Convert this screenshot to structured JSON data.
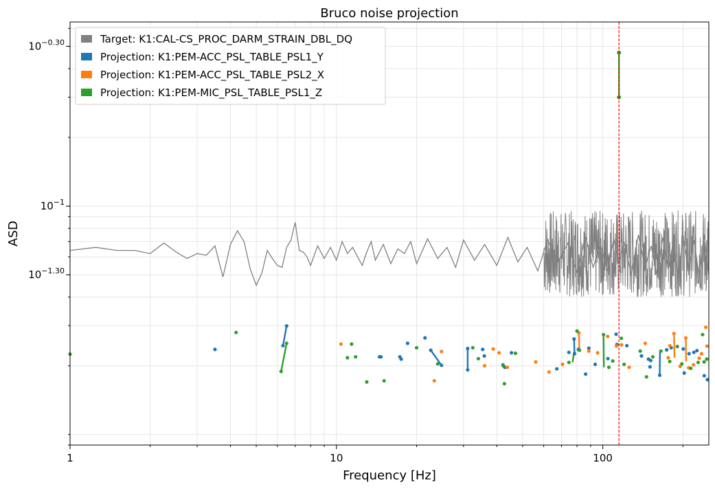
{
  "chart_data": {
    "type": "line",
    "title": "Bruco noise projection",
    "xlabel": "Frequency [Hz]",
    "ylabel": "ASD",
    "xscale": "log",
    "yscale": "log",
    "xlim": [
      1,
      250
    ],
    "ylim": [
      0.009,
      0.64
    ],
    "grid": true,
    "legend_position": "top-left",
    "x_ticks": [
      {
        "value": 1,
        "label": "1"
      },
      {
        "value": 10,
        "label": "10"
      },
      {
        "value": 100,
        "label": "100"
      }
    ],
    "y_ticks": [
      {
        "value": 0.501,
        "label": "10",
        "exp": "−0.30"
      },
      {
        "value": 0.1,
        "label": "10",
        "exp": "−1"
      },
      {
        "value": 0.0501,
        "label": "10",
        "exp": "−1.30"
      }
    ],
    "vline": {
      "x": 115,
      "color": "#ff0000",
      "style": "dashed"
    },
    "target": {
      "name": "Target: K1:CAL-CS_PROC_DARM_STRAIN_DBL_DQ",
      "color": "#808080",
      "x": [
        1,
        1.25,
        1.5,
        1.75,
        2,
        2.25,
        2.5,
        2.75,
        3,
        3.25,
        3.5,
        3.75,
        4,
        4.25,
        4.5,
        4.75,
        5,
        5.25,
        5.5,
        5.75,
        6,
        6.25,
        6.5,
        6.75,
        7,
        7.25,
        7.5,
        7.75,
        8,
        8.5,
        9,
        9.5,
        10,
        10.5,
        11,
        11.5,
        12,
        12.5,
        13,
        13.5,
        14,
        15,
        16,
        17,
        18,
        19,
        20,
        22,
        24,
        26,
        28,
        30,
        33,
        36,
        40,
        44,
        48,
        52,
        57,
        62,
        68,
        74,
        80,
        86,
        92,
        98,
        104,
        110,
        115,
        120,
        128,
        136,
        144,
        152,
        160,
        168,
        176,
        184,
        192,
        200,
        210,
        220,
        230,
        240,
        250
      ],
      "y": [
        0.064,
        0.066,
        0.064,
        0.064,
        0.062,
        0.069,
        0.063,
        0.059,
        0.062,
        0.061,
        0.067,
        0.049,
        0.068,
        0.078,
        0.07,
        0.053,
        0.045,
        0.051,
        0.064,
        0.059,
        0.055,
        0.054,
        0.066,
        0.071,
        0.085,
        0.064,
        0.063,
        0.06,
        0.055,
        0.067,
        0.059,
        0.066,
        0.058,
        0.07,
        0.062,
        0.066,
        0.06,
        0.055,
        0.063,
        0.07,
        0.058,
        0.068,
        0.056,
        0.065,
        0.062,
        0.07,
        0.056,
        0.072,
        0.059,
        0.066,
        0.054,
        0.071,
        0.058,
        0.068,
        0.055,
        0.073,
        0.057,
        0.066,
        0.052,
        0.071,
        0.057,
        0.069,
        0.051,
        0.074,
        0.054,
        0.068,
        0.052,
        0.072,
        0.056,
        0.07,
        0.05,
        0.075,
        0.054,
        0.067,
        0.049,
        0.073,
        0.053,
        0.07,
        0.048,
        0.074,
        0.052,
        0.071,
        0.049,
        0.075,
        0.05
      ]
    },
    "series": [
      {
        "name": "Projection: K1:PEM-ACC_PSL_TABLE_PSL1_Y",
        "color": "#1f77b4",
        "points": [
          [
            3.5,
            0.0236
          ],
          [
            6.3,
            0.0245
          ],
          [
            6.5,
            0.0299
          ],
          [
            14.5,
            0.0219
          ],
          [
            14.7,
            0.0219
          ],
          [
            17.3,
            0.0219
          ],
          [
            17.5,
            0.0214
          ],
          [
            18.5,
            0.0251
          ],
          [
            21.5,
            0.0265
          ],
          [
            22.6,
            0.0234
          ],
          [
            24.8,
            0.0201
          ],
          [
            31.1,
            0.0238
          ],
          [
            31.1,
            0.0192
          ],
          [
            35.4,
            0.0236
          ],
          [
            35.9,
            0.0221
          ],
          [
            42.2,
            0.0202
          ],
          [
            42.9,
            0.0197
          ],
          [
            45.4,
            0.0228
          ],
          [
            67.2,
            0.0194
          ],
          [
            74.6,
            0.0229
          ],
          [
            78.0,
            0.0262
          ],
          [
            78.3,
            0.0226
          ],
          [
            81.0,
            0.0236
          ],
          [
            86.2,
            0.0184
          ],
          [
            88.6,
            0.0239
          ],
          [
            93.6,
            0.0203
          ],
          [
            104.5,
            0.0215
          ],
          [
            112.2,
            0.0275
          ],
          [
            113.0,
            0.0248
          ],
          [
            123.1,
            0.0245
          ],
          [
            139.7,
            0.0221
          ],
          [
            148.4,
            0.0214
          ],
          [
            150.4,
            0.0198
          ],
          [
            151.3,
            0.0211
          ],
          [
            163.5,
            0.0182
          ],
          [
            173.7,
            0.0235
          ],
          [
            180.6,
            0.024
          ],
          [
            200.4,
            0.0237
          ],
          [
            202.1,
            0.0186
          ],
          [
            210.7,
            0.0226
          ],
          [
            219.6,
            0.0229
          ],
          [
            225.6,
            0.0233
          ],
          [
            240.3,
            0.0181
          ],
          [
            247.0,
            0.0174
          ]
        ]
      },
      {
        "name": "Projection: K1:PEM-ACC_PSL_TABLE_PSL2_X",
        "color": "#ff7f0e",
        "points": [
          [
            10.4,
            0.0249
          ],
          [
            23.3,
            0.0172
          ],
          [
            24.8,
            0.0231
          ],
          [
            36.0,
            0.02
          ],
          [
            38.8,
            0.0237
          ],
          [
            40.8,
            0.0228
          ],
          [
            43.8,
            0.0197
          ],
          [
            56.0,
            0.0208
          ],
          [
            62.8,
            0.0188
          ],
          [
            70.6,
            0.0203
          ],
          [
            81.3,
            0.0279
          ],
          [
            88.6,
            0.0232
          ],
          [
            95.6,
            0.0228
          ],
          [
            104.3,
            0.0269
          ],
          [
            112.5,
            0.0244
          ],
          [
            117.6,
            0.0247
          ],
          [
            125.6,
            0.0197
          ],
          [
            144.2,
            0.0251
          ],
          [
            176.0,
            0.0217
          ],
          [
            178.5,
            0.0245
          ],
          [
            185.0,
            0.0277
          ],
          [
            195.2,
            0.0199
          ],
          [
            204.9,
            0.0265
          ],
          [
            210.2,
            0.0196
          ],
          [
            219.0,
            0.0202
          ],
          [
            230.1,
            0.0216
          ],
          [
            234.8,
            0.0226
          ],
          [
            243.6,
            0.0295
          ],
          [
            246.2,
            0.0244
          ]
        ]
      },
      {
        "name": "Projection: K1:PEM-MIC_PSL_TABLE_PSL1_Z",
        "color": "#2ca02c",
        "points": [
          [
            1.0,
            0.0225
          ],
          [
            4.2,
            0.028
          ],
          [
            6.2,
            0.0189
          ],
          [
            6.5,
            0.0251
          ],
          [
            11.0,
            0.0217
          ],
          [
            11.4,
            0.0249
          ],
          [
            11.8,
            0.0219
          ],
          [
            13.0,
            0.017
          ],
          [
            15.1,
            0.0172
          ],
          [
            20.0,
            0.024
          ],
          [
            24.0,
            0.0204
          ],
          [
            32.5,
            0.024
          ],
          [
            34.1,
            0.0215
          ],
          [
            42.3,
            0.02
          ],
          [
            42.7,
            0.0167
          ],
          [
            47.0,
            0.0227
          ],
          [
            74.6,
            0.0207
          ],
          [
            80.0,
            0.0284
          ],
          [
            81.7,
            0.0234
          ],
          [
            100.6,
            0.0274
          ],
          [
            105.4,
            0.0197
          ],
          [
            109.0,
            0.021
          ],
          [
            117.4,
            0.0264
          ],
          [
            120.2,
            0.0203
          ],
          [
            138.2,
            0.0232
          ],
          [
            145.9,
            0.0179
          ],
          [
            154.1,
            0.0219
          ],
          [
            165.2,
            0.0232
          ],
          [
            178.3,
            0.0209
          ],
          [
            190.4,
            0.0243
          ],
          [
            198.0,
            0.0204
          ],
          [
            214.0,
            0.0195
          ],
          [
            228.0,
            0.0207
          ],
          [
            236.9,
            0.0274
          ],
          [
            240.0,
            0.0208
          ],
          [
            245.5,
            0.0214
          ]
        ]
      }
    ],
    "projection_lines": [
      {
        "series": 0,
        "points": [
          [
            6.3,
            0.0245
          ],
          [
            6.5,
            0.0299
          ]
        ]
      },
      {
        "series": 2,
        "points": [
          [
            6.2,
            0.0189
          ],
          [
            6.5,
            0.0251
          ]
        ]
      },
      {
        "series": 0,
        "points": [
          [
            22.6,
            0.0234
          ],
          [
            24.8,
            0.0201
          ]
        ]
      },
      {
        "series": 0,
        "points": [
          [
            31.1,
            0.0238
          ],
          [
            31.1,
            0.0192
          ]
        ]
      },
      {
        "series": 1,
        "points": [
          [
            81.3,
            0.0279
          ],
          [
            81.7,
            0.0234
          ]
        ]
      },
      {
        "series": 0,
        "points": [
          [
            78.0,
            0.0262
          ],
          [
            78.3,
            0.0226
          ]
        ]
      },
      {
        "series": 2,
        "points": [
          [
            77.0,
            0.0207
          ],
          [
            78.0,
            0.023
          ]
        ]
      },
      {
        "series": 2,
        "points": [
          [
            100.6,
            0.0274
          ],
          [
            100.9,
            0.0197
          ]
        ]
      },
      {
        "series": 2,
        "points": [
          [
            115.0,
            0.47
          ],
          [
            115.0,
            0.3
          ]
        ]
      },
      {
        "series": 1,
        "points": [
          [
            185.0,
            0.0277
          ],
          [
            185.8,
            0.0217
          ]
        ]
      },
      {
        "series": 1,
        "points": [
          [
            204.9,
            0.0265
          ],
          [
            205.5,
            0.0209
          ]
        ]
      },
      {
        "series": 0,
        "points": [
          [
            163.5,
            0.0182
          ],
          [
            163.9,
            0.0231
          ]
        ]
      }
    ],
    "peak_points": [
      {
        "series": 2,
        "x": 115.0,
        "y": 0.47
      },
      {
        "series": 2,
        "x": 115.0,
        "y": 0.3
      }
    ]
  }
}
